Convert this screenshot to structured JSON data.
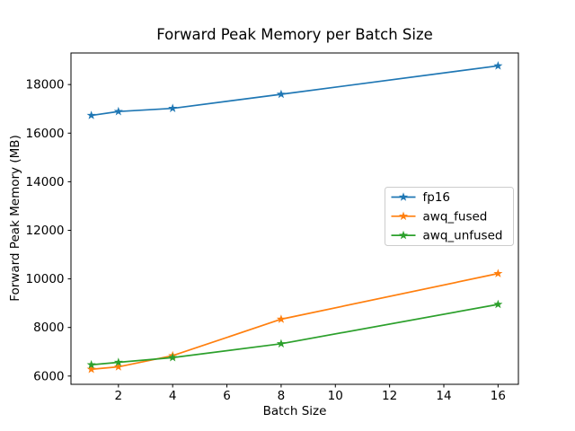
{
  "figure": {
    "background": "#ffffff"
  },
  "chart_data": {
    "type": "line",
    "title": "Forward Peak Memory per Batch Size",
    "xlabel": "Batch Size",
    "ylabel": "Forward Peak Memory (MB)",
    "x": [
      1,
      2,
      4,
      8,
      16
    ],
    "series": [
      {
        "name": "fp16",
        "color": "#1f77b4",
        "values": [
          16730,
          16890,
          17020,
          17600,
          18770
        ]
      },
      {
        "name": "awq_fused",
        "color": "#ff7f0e",
        "values": [
          6280,
          6380,
          6840,
          8340,
          10220
        ]
      },
      {
        "name": "awq_unfused",
        "color": "#2ca02c",
        "values": [
          6465,
          6565,
          6760,
          7330,
          8950
        ]
      }
    ],
    "xlim": [
      0.25,
      16.75
    ],
    "ylim": [
      5660,
      19300
    ],
    "xticks": [
      2,
      4,
      6,
      8,
      10,
      12,
      14,
      16
    ],
    "xtick_labels": [
      "2",
      "4",
      "6",
      "8",
      "10",
      "12",
      "14",
      "16"
    ],
    "yticks": [
      6000,
      8000,
      10000,
      12000,
      14000,
      16000,
      18000
    ],
    "ytick_labels": [
      "6000",
      "8000",
      "10000",
      "12000",
      "14000",
      "16000",
      "18000"
    ],
    "grid": false,
    "marker": "star",
    "legend_position": "center right",
    "legend_entries": [
      "fp16",
      "awq_fused",
      "awq_unfused"
    ],
    "axis_color": "#000000",
    "text_color": "#000000",
    "legend_border_color": "#cccccc",
    "legend_background": "#ffffff"
  }
}
